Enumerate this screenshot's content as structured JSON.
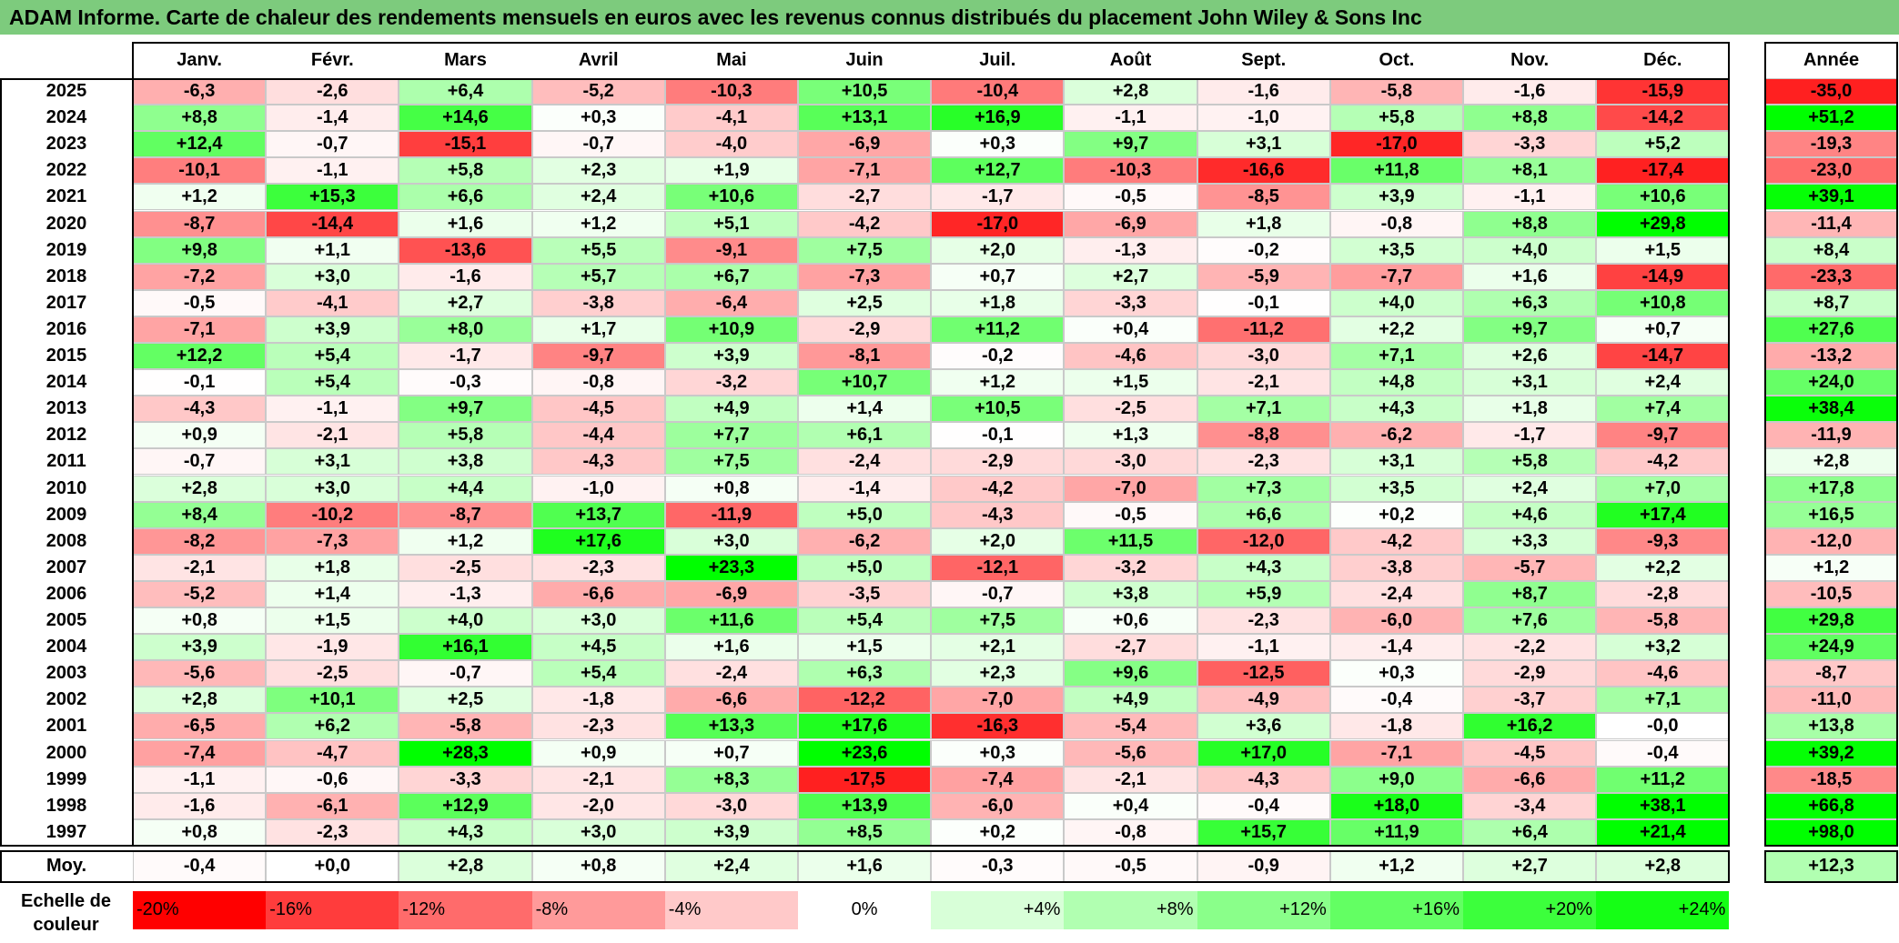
{
  "title": "ADAM Informe. Carte de chaleur des rendements mensuels en euros avec les revenus connus distribués du placement John Wiley & Sons Inc",
  "chart_data": {
    "type": "heatmap",
    "columns": [
      "Janv.",
      "Févr.",
      "Mars",
      "Avril",
      "Mai",
      "Juin",
      "Juil.",
      "Août",
      "Sept.",
      "Oct.",
      "Nov.",
      "Déc."
    ],
    "annual_header": "Année",
    "rows": [
      {
        "year": "2025",
        "values": [
          "-6,3",
          "-2,6",
          "+6,4",
          "-5,2",
          "-10,3",
          "+10,5",
          "-10,4",
          "+2,8",
          "-1,6",
          "-5,8",
          "-1,6",
          "-15,9"
        ],
        "annual": "-35,0"
      },
      {
        "year": "2024",
        "values": [
          "+8,8",
          "-1,4",
          "+14,6",
          "+0,3",
          "-4,1",
          "+13,1",
          "+16,9",
          "-1,1",
          "-1,0",
          "+5,8",
          "+8,8",
          "-14,2"
        ],
        "annual": "+51,2"
      },
      {
        "year": "2023",
        "values": [
          "+12,4",
          "-0,7",
          "-15,1",
          "-0,7",
          "-4,0",
          "-6,9",
          "+0,3",
          "+9,7",
          "+3,1",
          "-17,0",
          "-3,3",
          "+5,2"
        ],
        "annual": "-19,3"
      },
      {
        "year": "2022",
        "values": [
          "-10,1",
          "-1,1",
          "+5,8",
          "+2,3",
          "+1,9",
          "-7,1",
          "+12,7",
          "-10,3",
          "-16,6",
          "+11,8",
          "+8,1",
          "-17,4"
        ],
        "annual": "-23,0"
      },
      {
        "year": "2021",
        "values": [
          "+1,2",
          "+15,3",
          "+6,6",
          "+2,4",
          "+10,6",
          "-2,7",
          "-1,7",
          "-0,5",
          "-8,5",
          "+3,9",
          "-1,1",
          "+10,6"
        ],
        "annual": "+39,1"
      },
      {
        "year": "2020",
        "values": [
          "-8,7",
          "-14,4",
          "+1,6",
          "+1,2",
          "+5,1",
          "-4,2",
          "-17,0",
          "-6,9",
          "+1,8",
          "-0,8",
          "+8,8",
          "+29,8"
        ],
        "annual": "-11,4"
      },
      {
        "year": "2019",
        "values": [
          "+9,8",
          "+1,1",
          "-13,6",
          "+5,5",
          "-9,1",
          "+7,5",
          "+2,0",
          "-1,3",
          "-0,2",
          "+3,5",
          "+4,0",
          "+1,5"
        ],
        "annual": "+8,4"
      },
      {
        "year": "2018",
        "values": [
          "-7,2",
          "+3,0",
          "-1,6",
          "+5,7",
          "+6,7",
          "-7,3",
          "+0,7",
          "+2,7",
          "-5,9",
          "-7,7",
          "+1,6",
          "-14,9"
        ],
        "annual": "-23,3"
      },
      {
        "year": "2017",
        "values": [
          "-0,5",
          "-4,1",
          "+2,7",
          "-3,8",
          "-6,4",
          "+2,5",
          "+1,8",
          "-3,3",
          "-0,1",
          "+4,0",
          "+6,3",
          "+10,8"
        ],
        "annual": "+8,7"
      },
      {
        "year": "2016",
        "values": [
          "-7,1",
          "+3,9",
          "+8,0",
          "+1,7",
          "+10,9",
          "-2,9",
          "+11,2",
          "+0,4",
          "-11,2",
          "+2,2",
          "+9,7",
          "+0,7"
        ],
        "annual": "+27,6"
      },
      {
        "year": "2015",
        "values": [
          "+12,2",
          "+5,4",
          "-1,7",
          "-9,7",
          "+3,9",
          "-8,1",
          "-0,2",
          "-4,6",
          "-3,0",
          "+7,1",
          "+2,6",
          "-14,7"
        ],
        "annual": "-13,2"
      },
      {
        "year": "2014",
        "values": [
          "-0,1",
          "+5,4",
          "-0,3",
          "-0,8",
          "-3,2",
          "+10,7",
          "+1,2",
          "+1,5",
          "-2,1",
          "+4,8",
          "+3,1",
          "+2,4"
        ],
        "annual": "+24,0"
      },
      {
        "year": "2013",
        "values": [
          "-4,3",
          "-1,1",
          "+9,7",
          "-4,5",
          "+4,9",
          "+1,4",
          "+10,5",
          "-2,5",
          "+7,1",
          "+4,3",
          "+1,8",
          "+7,4"
        ],
        "annual": "+38,4"
      },
      {
        "year": "2012",
        "values": [
          "+0,9",
          "-2,1",
          "+5,8",
          "-4,4",
          "+7,7",
          "+6,1",
          "-0,1",
          "+1,3",
          "-8,8",
          "-6,2",
          "-1,7",
          "-9,7"
        ],
        "annual": "-11,9"
      },
      {
        "year": "2011",
        "values": [
          "-0,7",
          "+3,1",
          "+3,8",
          "-4,3",
          "+7,5",
          "-2,4",
          "-2,9",
          "-3,0",
          "-2,3",
          "+3,1",
          "+5,8",
          "-4,2"
        ],
        "annual": "+2,8"
      },
      {
        "year": "2010",
        "values": [
          "+2,8",
          "+3,0",
          "+4,4",
          "-1,0",
          "+0,8",
          "-1,4",
          "-4,2",
          "-7,0",
          "+7,3",
          "+3,5",
          "+2,4",
          "+7,0"
        ],
        "annual": "+17,8"
      },
      {
        "year": "2009",
        "values": [
          "+8,4",
          "-10,2",
          "-8,7",
          "+13,7",
          "-11,9",
          "+5,0",
          "-4,3",
          "-0,5",
          "+6,6",
          "+0,2",
          "+4,6",
          "+17,4"
        ],
        "annual": "+16,5"
      },
      {
        "year": "2008",
        "values": [
          "-8,2",
          "-7,3",
          "+1,2",
          "+17,6",
          "+3,0",
          "-6,2",
          "+2,0",
          "+11,5",
          "-12,0",
          "-4,2",
          "+3,3",
          "-9,3"
        ],
        "annual": "-12,0"
      },
      {
        "year": "2007",
        "values": [
          "-2,1",
          "+1,8",
          "-2,5",
          "-2,3",
          "+23,3",
          "+5,0",
          "-12,1",
          "-3,2",
          "+4,3",
          "-3,8",
          "-5,7",
          "+2,2"
        ],
        "annual": "+1,2"
      },
      {
        "year": "2006",
        "values": [
          "-5,2",
          "+1,4",
          "-1,3",
          "-6,6",
          "-6,9",
          "-3,5",
          "-0,7",
          "+3,8",
          "+5,9",
          "-2,4",
          "+8,7",
          "-2,8"
        ],
        "annual": "-10,5"
      },
      {
        "year": "2005",
        "values": [
          "+0,8",
          "+1,5",
          "+4,0",
          "+3,0",
          "+11,6",
          "+5,4",
          "+7,5",
          "+0,6",
          "-2,3",
          "-6,0",
          "+7,6",
          "-5,8"
        ],
        "annual": "+29,8"
      },
      {
        "year": "2004",
        "values": [
          "+3,9",
          "-1,9",
          "+16,1",
          "+4,5",
          "+1,6",
          "+1,5",
          "+2,1",
          "-2,7",
          "-1,1",
          "-1,4",
          "-2,2",
          "+3,2"
        ],
        "annual": "+24,9"
      },
      {
        "year": "2003",
        "values": [
          "-5,6",
          "-2,5",
          "-0,7",
          "+5,4",
          "-2,4",
          "+6,3",
          "+2,3",
          "+9,6",
          "-12,5",
          "+0,3",
          "-2,9",
          "-4,6"
        ],
        "annual": "-8,7"
      },
      {
        "year": "2002",
        "values": [
          "+2,8",
          "+10,1",
          "+2,5",
          "-1,8",
          "-6,6",
          "-12,2",
          "-7,0",
          "+4,9",
          "-4,9",
          "-0,4",
          "-3,7",
          "+7,1"
        ],
        "annual": "-11,0"
      },
      {
        "year": "2001",
        "values": [
          "-6,5",
          "+6,2",
          "-5,8",
          "-2,3",
          "+13,3",
          "+17,6",
          "-16,3",
          "-5,4",
          "+3,6",
          "-1,8",
          "+16,2",
          "-0,0"
        ],
        "annual": "+13,8"
      },
      {
        "year": "2000",
        "values": [
          "-7,4",
          "-4,7",
          "+28,3",
          "+0,9",
          "+0,7",
          "+23,6",
          "+0,3",
          "-5,6",
          "+17,0",
          "-7,1",
          "-4,5",
          "-0,4"
        ],
        "annual": "+39,2"
      },
      {
        "year": "1999",
        "values": [
          "-1,1",
          "-0,6",
          "-3,3",
          "-2,1",
          "+8,3",
          "-17,5",
          "-7,4",
          "-2,1",
          "-4,3",
          "+9,0",
          "-6,6",
          "+11,2"
        ],
        "annual": "-18,5"
      },
      {
        "year": "1998",
        "values": [
          "-1,6",
          "-6,1",
          "+12,9",
          "-2,0",
          "-3,0",
          "+13,9",
          "-6,0",
          "+0,4",
          "-0,4",
          "+18,0",
          "-3,4",
          "+38,1"
        ],
        "annual": "+66,8"
      },
      {
        "year": "1997",
        "values": [
          "+0,8",
          "-2,3",
          "+4,3",
          "+3,0",
          "+3,9",
          "+8,5",
          "+0,2",
          "-0,8",
          "+15,7",
          "+11,9",
          "+6,4",
          "+21,4"
        ],
        "annual": "+98,0"
      }
    ],
    "average": {
      "label": "Moy.",
      "values": [
        "-0,4",
        "+0,0",
        "+2,8",
        "+0,8",
        "+2,4",
        "+1,6",
        "-0,3",
        "-0,5",
        "-0,9",
        "+1,2",
        "+2,7",
        "+2,8"
      ],
      "annual": "+12,3"
    },
    "legend": {
      "label_line1": "Echelle de",
      "label_line2": "couleur",
      "items": [
        "-20%",
        "-16%",
        "-12%",
        "-8%",
        "-4%",
        "0%",
        "+4%",
        "+8%",
        "+12%",
        "+16%",
        "+20%",
        "+24%"
      ],
      "colors": [
        "#ff0000",
        "#ff3c3c",
        "#ff6b6b",
        "#ff9a9a",
        "#ffc9c9",
        "#ffffff",
        "#d8ffd8",
        "#b1ffb1",
        "#8aff8a",
        "#63ff63",
        "#3cff3c",
        "#15ff15"
      ]
    }
  }
}
